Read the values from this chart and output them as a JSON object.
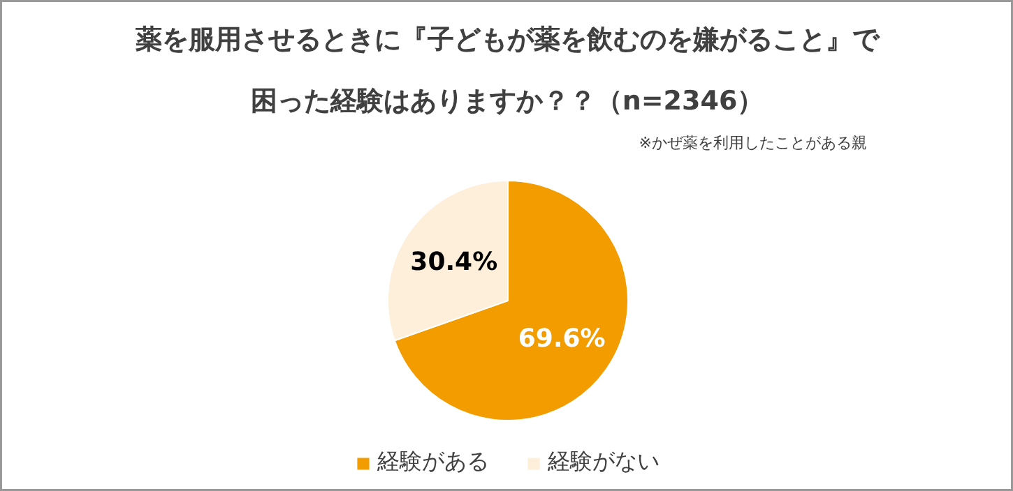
{
  "chart_data": {
    "type": "pie",
    "title": "薬を服用させるときに『子どもが薬を飲むのを嫌がること』で困った経験はありますか？？（n=2346）",
    "annotations": [
      "※かぜ薬を利用したことがある親"
    ],
    "categories": [
      "経験がある",
      "経験がない"
    ],
    "values": [
      69.6,
      30.4
    ],
    "colors": [
      "#f29c00",
      "#fdefd9"
    ],
    "value_labels": [
      "69.6%",
      "30.4%"
    ],
    "legend": "bottom"
  }
}
